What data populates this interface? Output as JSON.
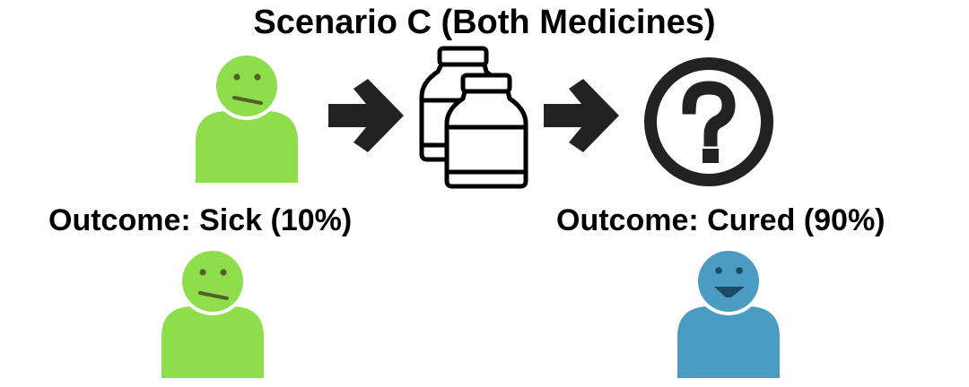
{
  "title": "Scenario C (Both Medicines)",
  "outcomes": {
    "sick": {
      "label": "Outcome: Sick (10%)",
      "state": "sick"
    },
    "cured": {
      "label": "Outcome: Cured (90%)",
      "state": "cured"
    }
  },
  "icons": {
    "patient": "person-icon",
    "arrow": "arrow-right-icon",
    "medicine": "medicine-bottles-icon",
    "unknown": "question-mark-icon"
  },
  "colors": {
    "sick": "#8ede4c",
    "cured": "#4a9cc3",
    "face_features_sick": "#555f2b",
    "face_features_cured": "#1f4a63",
    "stroke": "#000000",
    "arrow": "#222222"
  }
}
